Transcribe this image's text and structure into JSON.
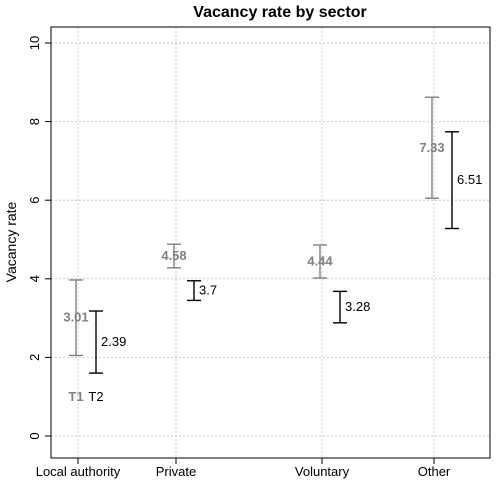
{
  "chart_data": {
    "type": "error-bar",
    "title": "Vacancy rate by sector",
    "xlabel": "",
    "ylabel": "Vacancy rate",
    "ylim": [
      0,
      10
    ],
    "yticks": [
      "0",
      "2",
      "4",
      "6",
      "8",
      "10"
    ],
    "categories": [
      "Local authority",
      "Private",
      "Voluntary",
      "Other"
    ],
    "grid": true,
    "series": [
      {
        "name": "T1",
        "color": "#808080",
        "values": [
          3.01,
          4.58,
          4.44,
          7.33
        ],
        "labels": [
          "3.01",
          "4.58",
          "4.44",
          "7.33"
        ],
        "lower": [
          2.05,
          4.28,
          4.02,
          6.05
        ],
        "upper": [
          3.97,
          4.88,
          4.86,
          8.62
        ]
      },
      {
        "name": "T2",
        "color": "#000000",
        "values": [
          2.39,
          3.7,
          3.28,
          6.51
        ],
        "labels": [
          "2.39",
          "3.7",
          "3.28",
          "6.51"
        ],
        "lower": [
          1.6,
          3.45,
          2.88,
          5.28
        ],
        "upper": [
          3.18,
          3.95,
          3.68,
          7.74
        ]
      }
    ]
  }
}
